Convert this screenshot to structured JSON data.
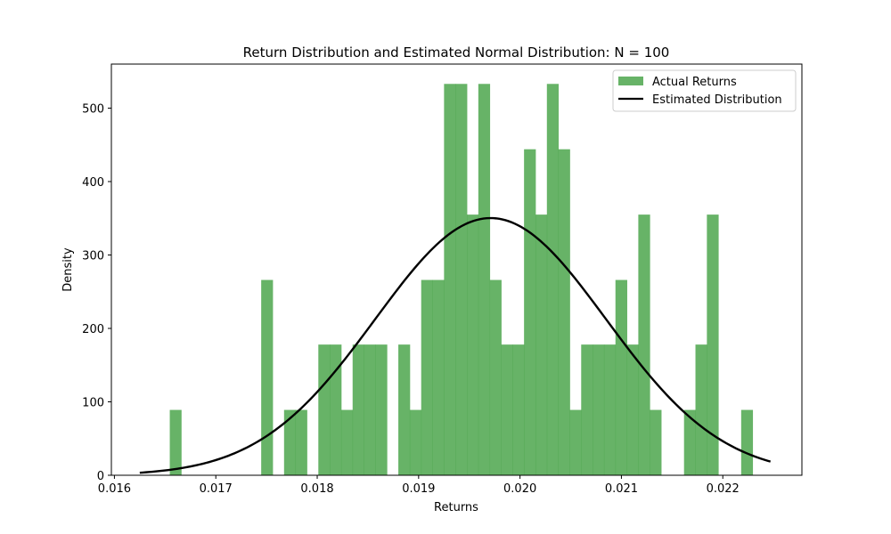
{
  "chart_data": {
    "type": "bar",
    "title": "Return Distribution and Estimated Normal Distribution: N = 100",
    "xlabel": "Returns",
    "ylabel": "Density",
    "xlim": [
      0.01597,
      0.02278
    ],
    "ylim": [
      0,
      560
    ],
    "xticks": [
      0.016,
      0.017,
      0.018,
      0.019,
      0.02,
      0.021,
      0.022
    ],
    "xtick_labels": [
      "0.016",
      "0.017",
      "0.018",
      "0.019",
      "0.020",
      "0.021",
      "0.022"
    ],
    "yticks": [
      0,
      100,
      200,
      300,
      400,
      500
    ],
    "ytick_labels": [
      "0",
      "100",
      "200",
      "300",
      "400",
      "500"
    ],
    "bin_start": 0.016546,
    "bin_width": 0.0001127,
    "bars": [
      {
        "name": "Actual Returns",
        "color": "#4ca64c",
        "values": [
          89,
          0,
          0,
          0,
          0,
          0,
          0,
          0,
          266,
          0,
          89,
          89,
          0,
          178,
          178,
          89,
          178,
          178,
          178,
          0,
          178,
          89,
          266,
          266,
          533,
          533,
          355,
          533,
          266,
          178,
          178,
          444,
          355,
          533,
          444,
          89,
          178,
          178,
          178,
          266,
          178,
          355,
          89,
          0,
          0,
          89,
          178,
          355,
          0,
          0,
          89
        ]
      }
    ],
    "series": [
      {
        "name": "Estimated Distribution",
        "type": "line",
        "color": "#000000",
        "mean": 0.01971,
        "std": 0.001139,
        "x_range": [
          0.01625,
          0.02247
        ]
      }
    ],
    "legend": {
      "position": "top-right",
      "entries": [
        "Actual Returns",
        "Estimated Distribution"
      ]
    }
  }
}
